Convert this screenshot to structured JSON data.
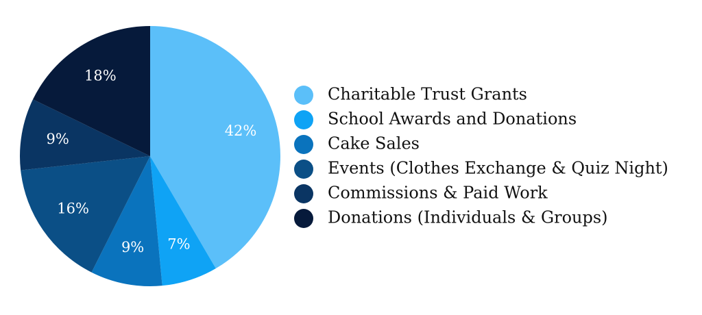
{
  "chart_data": {
    "type": "pie",
    "categories": [
      "Charitable Trust Grants",
      "School Awards and Donations",
      "Cake Sales",
      "Events (Clothes Exchange & Quiz Night)",
      "Commissions & Paid Work",
      "Donations (Individuals & Groups)"
    ],
    "values": [
      42,
      7,
      9,
      16,
      9,
      18
    ],
    "value_labels": [
      "42%",
      "7%",
      "9%",
      "16%",
      "9%",
      "18%"
    ],
    "colors": [
      "#5bbff9",
      "#0fa3f5",
      "#0a73bd",
      "#0b4f86",
      "#0a3563",
      "#061a3b"
    ],
    "legend": "right"
  }
}
